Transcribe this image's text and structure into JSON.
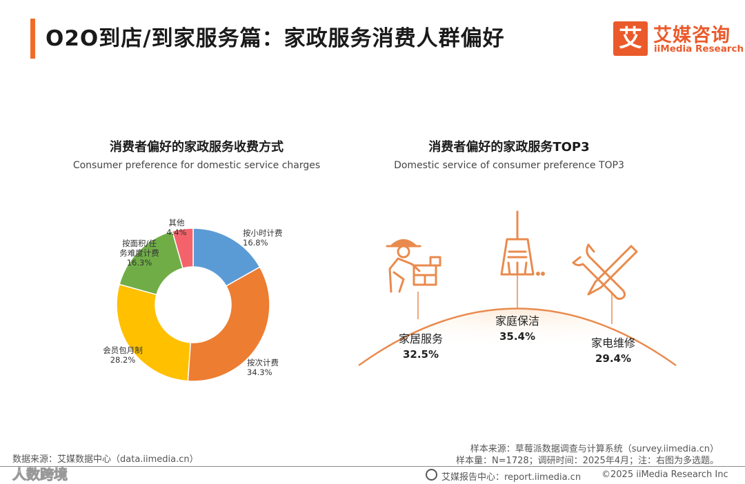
{
  "header": {
    "title": "O2O到店/到家服务篇：家政服务消费人群偏好",
    "logo_mark": "艾",
    "logo_cn": "艾媒咨询",
    "logo_en": "iiMedia Research"
  },
  "left_chart": {
    "title": "消费者偏好的家政服务收费方式",
    "subtitle": "Consumer preference for domestic service charges"
  },
  "right_chart": {
    "title": "消费者偏好的家政服务TOP3",
    "subtitle": "Domestic service of consumer preference TOP3"
  },
  "colors": {
    "accent": "#ef6b28",
    "brand": "#ea5a2a",
    "blue": "#5b9bd5",
    "orange": "#ed7d31",
    "yellow": "#ffc000",
    "green": "#70ad47",
    "red": "#f4636b",
    "icon": "#e98a4d"
  },
  "icons": [
    "worker-icon",
    "broom-icon",
    "tools-icon",
    "globe-icon"
  ],
  "chart_data": [
    {
      "type": "pie",
      "variant": "donut",
      "title": "消费者偏好的家政服务收费方式",
      "subtitle": "Consumer preference for domestic service charges",
      "slices": [
        {
          "label": "按小时计费",
          "value": 16.8,
          "display": "16.8%",
          "color": "#5b9bd5"
        },
        {
          "label": "按次计费",
          "value": 34.3,
          "display": "34.3%",
          "color": "#ed7d31"
        },
        {
          "label": "会员包月制",
          "value": 28.2,
          "display": "28.2%",
          "color": "#ffc000"
        },
        {
          "label": "按面积/任务难度计费",
          "label_lines": [
            "按面积/任",
            "务难度计费"
          ],
          "value": 16.3,
          "display": "16.3%",
          "color": "#70ad47"
        },
        {
          "label": "其他",
          "value": 4.4,
          "display": "4.4%",
          "color": "#f4636b"
        }
      ]
    },
    {
      "type": "bar",
      "variant": "icon-ranking",
      "title": "消费者偏好的家政服务TOP3",
      "subtitle": "Domestic service of consumer preference TOP3",
      "categories": [
        "家居服务",
        "家庭保洁",
        "家电维修"
      ],
      "values": [
        32.5,
        35.4,
        29.4
      ],
      "display": [
        "32.5%",
        "35.4%",
        "29.4%"
      ]
    }
  ],
  "footer": {
    "source": "数据来源：艾媒数据中心（data.iimedia.cn）",
    "sample_source": "样本来源：草莓派数据调查与计算系统（survey.iimedia.cn）",
    "sample_info": "样本量：N=1728；调研时间：2025年4月；注：右图为多选题。",
    "report_center": "艾媒报告中心：report.iimedia.cn",
    "copyright": "©2025  iiMedia Research  Inc",
    "watermark": "人数跨境"
  }
}
